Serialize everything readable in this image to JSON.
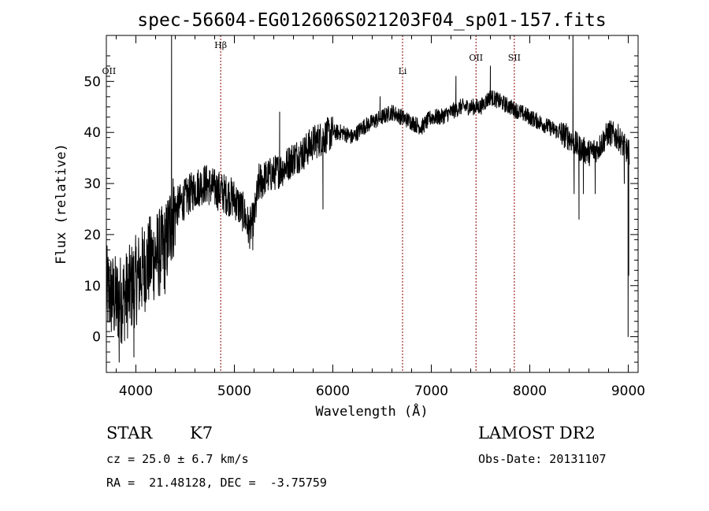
{
  "chart_data": {
    "type": "line",
    "title": "spec-56604-EG012606S021203F04_sp01-157.fits",
    "xlabel": "Wavelength (Å)",
    "ylabel": "Flux (relative)",
    "xlim": [
      3700,
      9100
    ],
    "ylim": [
      -7,
      59
    ],
    "xticks": [
      4000,
      5000,
      6000,
      7000,
      8000,
      9000
    ],
    "yticks": [
      0,
      10,
      20,
      30,
      40,
      50
    ],
    "grid": false,
    "line_color": "#000000",
    "marker_color": "#8b0000",
    "spectral_lines": [
      {
        "label": "OII",
        "wavelength": 3727,
        "dashed": false
      },
      {
        "label": "Hβ",
        "wavelength": 4861,
        "dashed": true
      },
      {
        "label": "Li",
        "wavelength": 6708,
        "dashed": true
      },
      {
        "label": "OII",
        "wavelength": 7454,
        "dashed": true
      },
      {
        "label": "SII",
        "wavelength": 7843,
        "dashed": true
      }
    ],
    "series": [
      {
        "x": [
          3700,
          3800,
          3900,
          4000,
          4100,
          4200,
          4300,
          4350,
          4400,
          4500,
          4600,
          4700,
          4800,
          4900,
          5000,
          5100,
          5150,
          5200,
          5250,
          5300,
          5400,
          5500,
          5600,
          5700,
          5800,
          5900,
          6000,
          6100,
          6200,
          6300,
          6400,
          6500,
          6600,
          6700,
          6800,
          6900,
          7000,
          7100,
          7200,
          7300,
          7400,
          7500,
          7600,
          7700,
          7800,
          7900,
          8000,
          8100,
          8200,
          8300,
          8400,
          8500,
          8600,
          8700,
          8800,
          8900,
          9000
        ],
        "y": [
          9,
          7,
          8,
          11,
          14,
          16,
          17,
          22,
          25,
          27,
          29,
          30,
          29,
          28,
          27,
          24,
          21,
          23,
          30,
          31,
          32,
          33,
          35,
          36,
          38,
          39,
          40,
          40,
          39,
          41,
          42,
          43,
          44,
          43,
          42,
          41,
          43,
          43,
          44,
          45,
          45,
          45,
          47,
          46,
          45,
          44,
          43,
          42,
          41,
          40,
          39,
          37,
          36,
          37,
          40,
          39,
          36
        ]
      }
    ],
    "spikes": [
      {
        "x": 3830,
        "y": -5
      },
      {
        "x": 3980,
        "y": -4
      },
      {
        "x": 4362,
        "y": 59
      },
      {
        "x": 4370,
        "y": 25
      },
      {
        "x": 5187,
        "y": 17
      },
      {
        "x": 5460,
        "y": 44
      },
      {
        "x": 5900,
        "y": 25
      },
      {
        "x": 6480,
        "y": 47
      },
      {
        "x": 7250,
        "y": 51
      },
      {
        "x": 7600,
        "y": 53
      },
      {
        "x": 8438,
        "y": 59
      },
      {
        "x": 8450,
        "y": 28
      },
      {
        "x": 8500,
        "y": 23
      },
      {
        "x": 8545,
        "y": 28
      },
      {
        "x": 8665,
        "y": 28
      },
      {
        "x": 8960,
        "y": 30
      },
      {
        "x": 8998,
        "y": 0
      },
      {
        "x": 9005,
        "y": 12
      }
    ]
  },
  "info": {
    "class": "STAR",
    "subclass": "K7",
    "survey": "LAMOST DR2",
    "cz": "cz = 25.0 ± 6.7 km/s",
    "obsdate": "Obs-Date: 20131107",
    "radec": "RA =  21.48128, DEC =  -3.75759"
  }
}
